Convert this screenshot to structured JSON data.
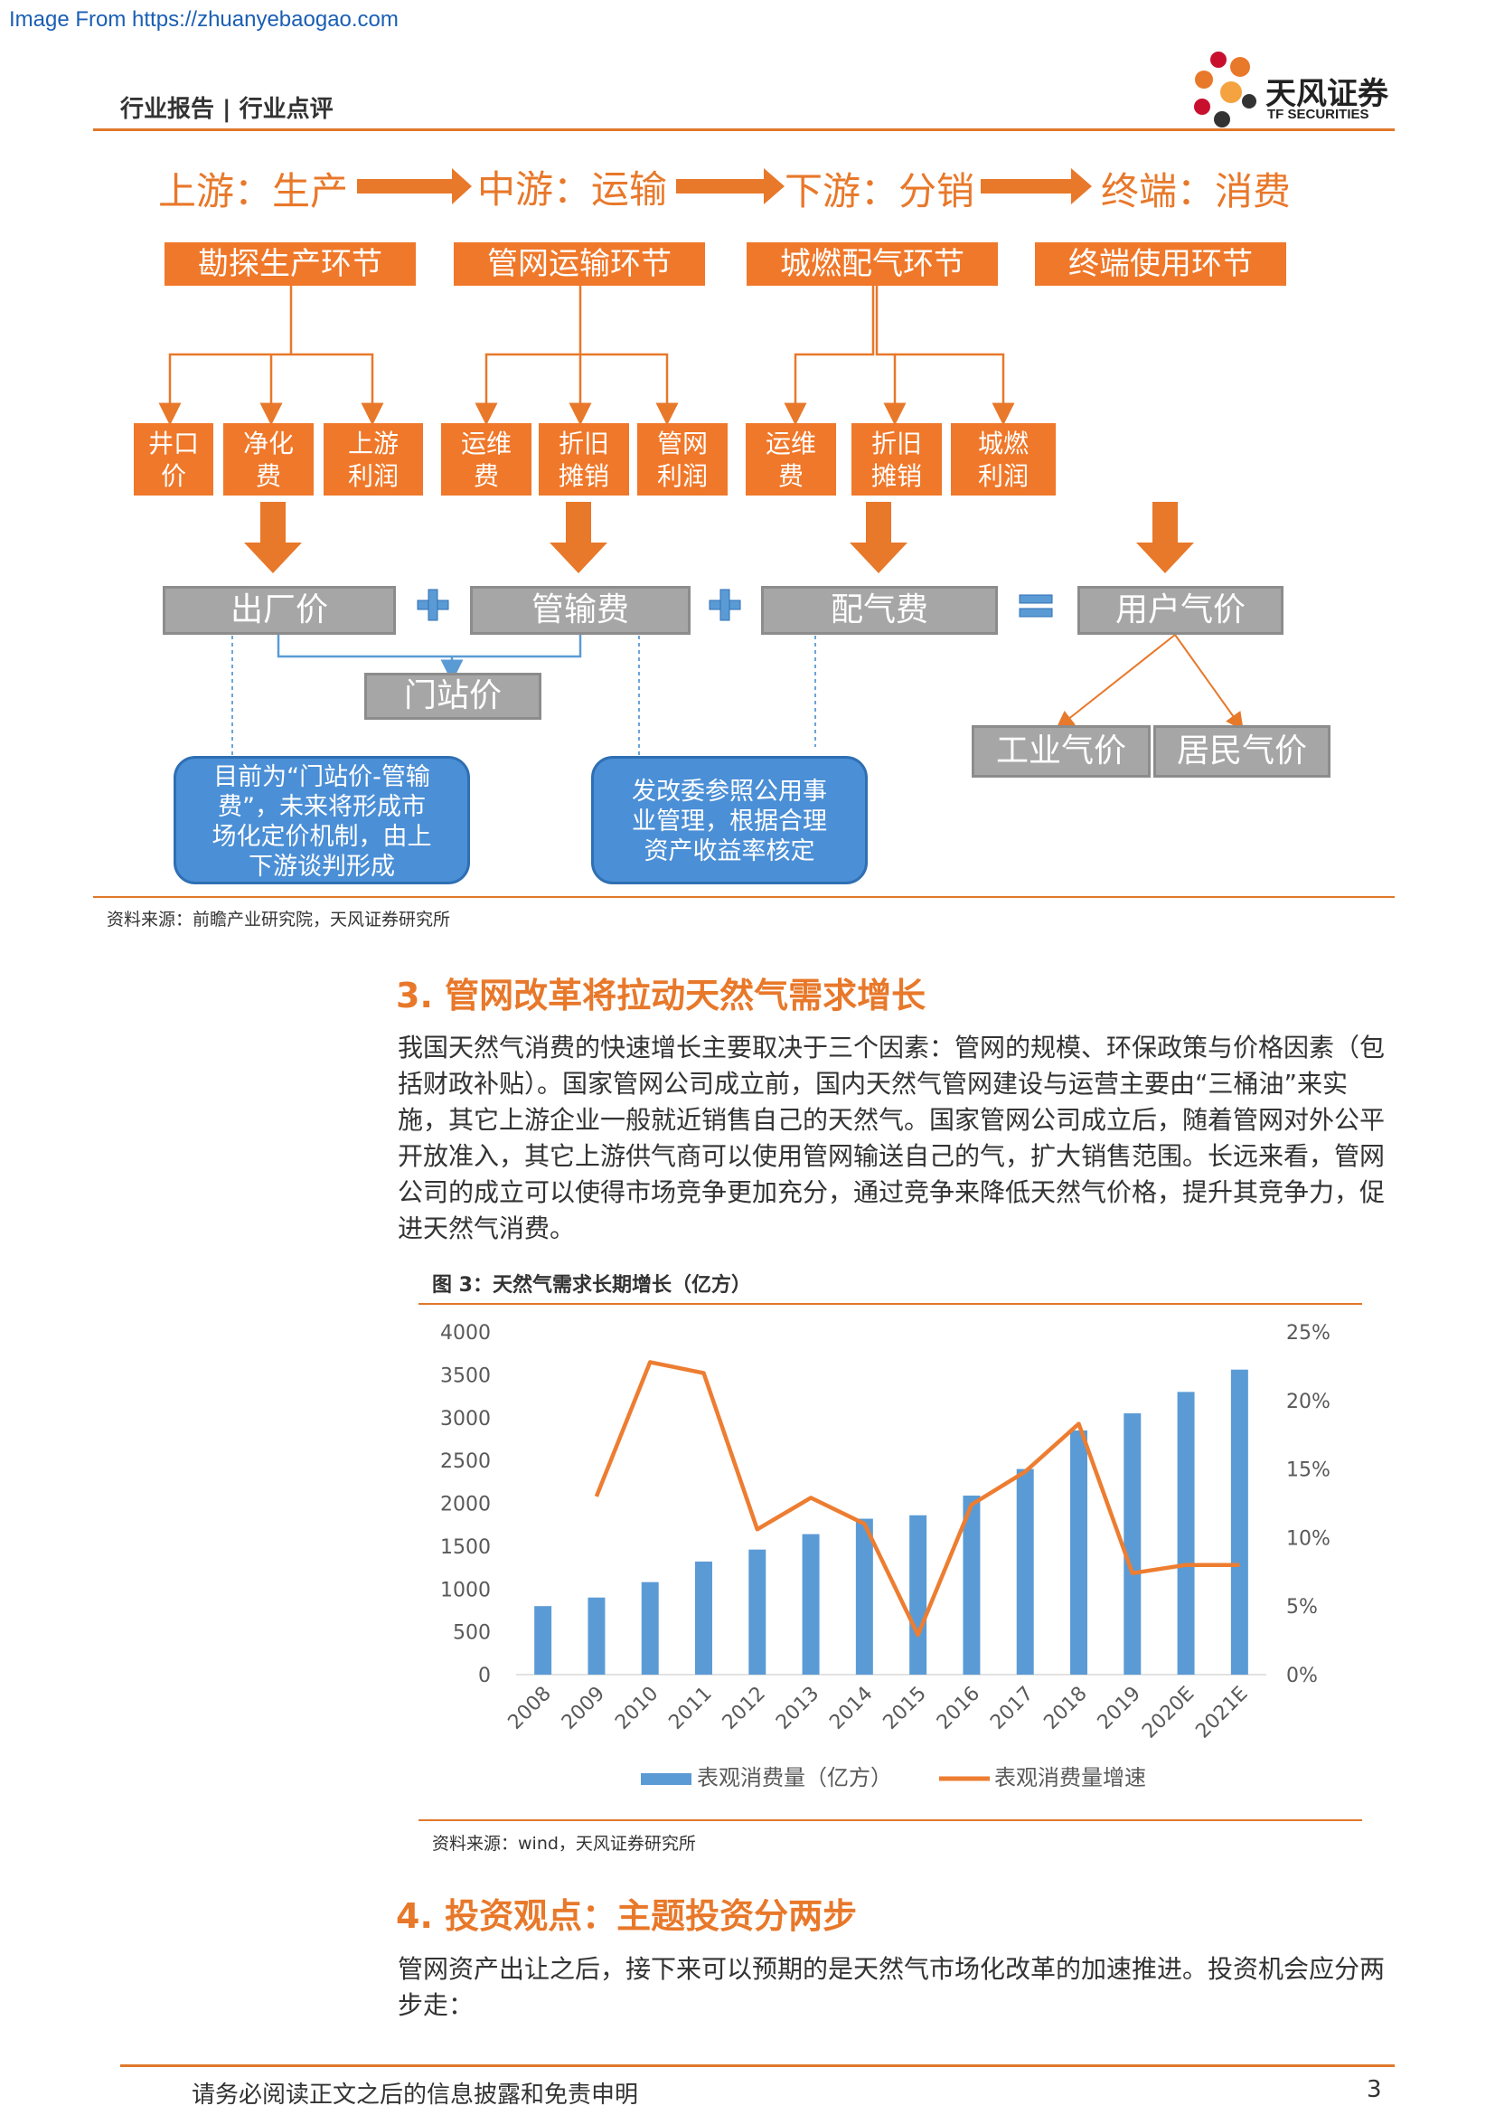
{
  "watermark": "Image From https://zhuanyebaogao.com",
  "header": {
    "left": "行业报告 | 行业点评",
    "logo_name": "天风证券",
    "logo_sub": "TF SECURITIES",
    "brand_colors": [
      "#e8782a",
      "#c8102e",
      "#333333"
    ]
  },
  "flow": {
    "stages": [
      "上游：生产",
      "中游：运输",
      "下游：分销",
      "终端：消费"
    ],
    "links": [
      "勘探生产环节",
      "管网运输环节",
      "城燃配气环节",
      "终端使用环节"
    ],
    "sub": [
      [
        "井口价",
        "净化费",
        "上游利润"
      ],
      [
        "运维费",
        "折旧摊销",
        "管网利润"
      ],
      [
        "运维费",
        "折旧摊销",
        "城燃利润"
      ]
    ],
    "sub_display": [
      [
        "井口\n价",
        "净化\n费",
        "上游\n利润"
      ],
      [
        "运维\n费",
        "折旧\n摊销",
        "管网\n利润"
      ],
      [
        "运维\n费",
        "折旧\n摊销",
        "城燃\n利润"
      ]
    ],
    "prices": [
      "出厂价",
      "管输费",
      "配气费",
      "用户气价"
    ],
    "gate_price": "门站价",
    "user_split": [
      "工业气价",
      "居民气价"
    ],
    "note_left": "目前为“门站价-管输费”，未来将形成市场化定价机制，由上下游谈判形成",
    "note_left_lines": [
      "目前为“门站价-管输",
      "费”，未来将形成市",
      "场化定价机制，由上",
      "下游谈判形成"
    ],
    "note_right": "发改委参照公用事业管理，根据合理资产收益率核定",
    "note_right_lines": [
      "发改委参照公用事",
      "业管理，根据合理",
      "资产收益率核定"
    ]
  },
  "source1": "资料来源：前瞻产业研究院，天风证券研究所",
  "section3": {
    "title": "3. 管网改革将拉动天然气需求增长",
    "para_lines": [
      "我国天然气消费的快速增长主要取决于三个因素：管网的规模、环保政策与价格因素（包",
      "括财政补贴）。国家管网公司成立前，国内天然气管网建设与运营主要由“三桶油”来实",
      "施，其它上游企业一般就近销售自己的天然气。国家管网公司成立后，随着管网对外公平",
      "开放准入，其它上游供气商可以使用管网输送自己的气，扩大销售范围。长远来看，管网",
      "公司的成立可以使得市场竞争更加充分，通过竞争来降低天然气价格，提升其竞争力，促",
      "进天然气消费。"
    ]
  },
  "figure3": {
    "title": "图 3：天然气需求长期增长（亿方）",
    "source": "资料来源：wind，天风证券研究所"
  },
  "chart_data": {
    "type": "bar+line",
    "categories": [
      "2008",
      "2009",
      "2010",
      "2011",
      "2012",
      "2013",
      "2014",
      "2015",
      "2016",
      "2017",
      "2018",
      "2019",
      "2020E",
      "2021E"
    ],
    "series": [
      {
        "name": "表观消费量（亿方）",
        "type": "bar",
        "axis": "left",
        "color": "#5b9bd5",
        "values": [
          800,
          900,
          1080,
          1320,
          1460,
          1640,
          1820,
          1860,
          2090,
          2400,
          2850,
          3050,
          3300,
          3560
        ]
      },
      {
        "name": "表观消费量增速",
        "type": "line",
        "axis": "right",
        "color": "#ed7d31",
        "values": [
          null,
          13.0,
          22.8,
          22.0,
          10.6,
          12.9,
          11.0,
          2.9,
          12.4,
          14.8,
          18.3,
          7.4,
          8.0,
          8.0
        ]
      }
    ],
    "y_left": {
      "min": 0,
      "max": 4000,
      "ticks": [
        "0",
        "500",
        "1000",
        "1500",
        "2000",
        "2500",
        "3000",
        "3500",
        "4000"
      ]
    },
    "y_right": {
      "min": 0,
      "max": 25,
      "ticks": [
        "0%",
        "5%",
        "10%",
        "15%",
        "20%",
        "25%"
      ]
    },
    "grid": false,
    "legend": "bottom"
  },
  "section4": {
    "title": "4. 投资观点：主题投资分两步",
    "para_lines": [
      "管网资产出让之后，接下来可以预期的是天然气市场化改革的加速推进。投资机会应分两",
      "步走："
    ]
  },
  "footer": {
    "disclaimer": "请务必阅读正文之后的信息披露和免责申明",
    "page": "3"
  }
}
